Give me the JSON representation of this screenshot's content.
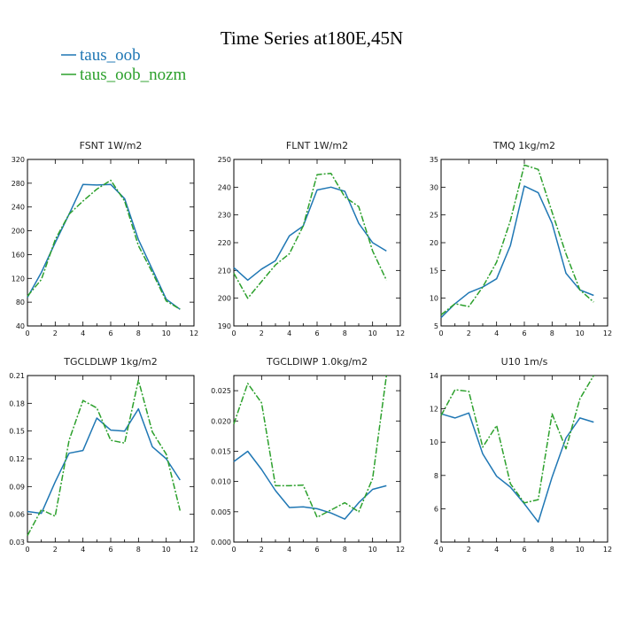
{
  "figure": {
    "title": "Time Series at180E,45N",
    "legend": [
      {
        "label": "taus_oob",
        "color": "#1f77b4",
        "dash": "solid"
      },
      {
        "label": "taus_oob_nozm",
        "color": "#2ca02c",
        "dash": "dashed"
      }
    ]
  },
  "chart_data": [
    {
      "type": "line",
      "title": "FSNT   1W/m2",
      "x": [
        0,
        1,
        2,
        3,
        4,
        5,
        6,
        7,
        8,
        9,
        10,
        11
      ],
      "xlim": [
        0,
        12
      ],
      "xticks": [
        0,
        2,
        4,
        6,
        8,
        10,
        12
      ],
      "ylim": [
        40,
        320
      ],
      "yticks": [
        40,
        80,
        120,
        160,
        200,
        240,
        280,
        320
      ],
      "ytick_labels": [
        "40",
        "80",
        "120",
        "160",
        "200",
        "240",
        "280",
        "320"
      ],
      "series": [
        {
          "name": "taus_oob",
          "values": [
            88,
            130,
            180,
            228,
            278,
            277,
            278,
            254,
            185,
            135,
            85,
            68
          ]
        },
        {
          "name": "taus_oob_nozm",
          "values": [
            90,
            118,
            185,
            228,
            250,
            270,
            285,
            250,
            175,
            130,
            82,
            68
          ]
        }
      ]
    },
    {
      "type": "line",
      "title": "FLNT   1W/m2",
      "x": [
        0,
        1,
        2,
        3,
        4,
        5,
        6,
        7,
        8,
        9,
        10,
        11
      ],
      "xlim": [
        0,
        12
      ],
      "xticks": [
        0,
        2,
        4,
        6,
        8,
        10,
        12
      ],
      "ylim": [
        190,
        250
      ],
      "yticks": [
        190,
        200,
        210,
        220,
        230,
        240,
        250
      ],
      "ytick_labels": [
        "190",
        "200",
        "210",
        "220",
        "230",
        "240",
        "250"
      ],
      "series": [
        {
          "name": "taus_oob",
          "values": [
            211,
            206.5,
            210.5,
            213.5,
            222.5,
            226,
            239,
            240,
            238.5,
            227,
            220,
            217
          ]
        },
        {
          "name": "taus_oob_nozm",
          "values": [
            209,
            200,
            206,
            212,
            216,
            226,
            244.5,
            245,
            236.5,
            233,
            217,
            206.5
          ]
        }
      ]
    },
    {
      "type": "line",
      "title": "TMQ   1kg/m2",
      "x": [
        0,
        1,
        2,
        3,
        4,
        5,
        6,
        7,
        8,
        9,
        10,
        11
      ],
      "xlim": [
        0,
        12
      ],
      "xticks": [
        0,
        2,
        4,
        6,
        8,
        10,
        12
      ],
      "ylim": [
        5,
        35
      ],
      "yticks": [
        5,
        10,
        15,
        20,
        25,
        30,
        35
      ],
      "ytick_labels": [
        "5",
        "10",
        "15",
        "20",
        "25",
        "30",
        "35"
      ],
      "series": [
        {
          "name": "taus_oob",
          "values": [
            6.5,
            9,
            11,
            12,
            13.5,
            19.5,
            30.2,
            29,
            23.5,
            14.5,
            11.5,
            10.5
          ]
        },
        {
          "name": "taus_oob_nozm",
          "values": [
            7,
            9,
            8.5,
            12,
            16.5,
            24,
            34,
            33.2,
            25.5,
            18,
            11.5,
            9.3
          ]
        }
      ]
    },
    {
      "type": "line",
      "title": "TGCLDLWP   1kg/m2",
      "x": [
        0,
        1,
        2,
        3,
        4,
        5,
        6,
        7,
        8,
        9,
        10,
        11
      ],
      "xlim": [
        0,
        12
      ],
      "xticks": [
        0,
        2,
        4,
        6,
        8,
        10,
        12
      ],
      "ylim": [
        0.03,
        0.21
      ],
      "yticks": [
        0.03,
        0.06,
        0.09,
        0.12,
        0.15,
        0.18,
        0.21
      ],
      "ytick_labels": [
        "0.03",
        "0.06",
        "0.09",
        "0.12",
        "0.15",
        "0.18",
        "0.21"
      ],
      "series": [
        {
          "name": "taus_oob",
          "values": [
            0.063,
            0.061,
            0.095,
            0.126,
            0.129,
            0.164,
            0.151,
            0.15,
            0.174,
            0.133,
            0.12,
            0.097
          ]
        },
        {
          "name": "taus_oob_nozm",
          "values": [
            0.037,
            0.065,
            0.058,
            0.14,
            0.183,
            0.175,
            0.14,
            0.137,
            0.205,
            0.149,
            0.125,
            0.064
          ]
        }
      ]
    },
    {
      "type": "line",
      "title": "TGCLDIWP   1.0kg/m2",
      "x": [
        0,
        1,
        2,
        3,
        4,
        5,
        6,
        7,
        8,
        9,
        10,
        11
      ],
      "xlim": [
        0,
        12
      ],
      "xticks": [
        0,
        2,
        4,
        6,
        8,
        10,
        12
      ],
      "ylim": [
        0,
        0.0275
      ],
      "yticks": [
        0,
        0.005,
        0.01,
        0.015,
        0.02,
        0.025
      ],
      "ytick_labels": [
        "0.000",
        "0.005",
        "0.010",
        "0.015",
        "0.020",
        "0.025"
      ],
      "series": [
        {
          "name": "taus_oob",
          "values": [
            0.0133,
            0.015,
            0.012,
            0.0085,
            0.0057,
            0.0058,
            0.0055,
            0.0048,
            0.0038,
            0.0065,
            0.0087,
            0.0093
          ]
        },
        {
          "name": "taus_oob_nozm",
          "values": [
            0.0195,
            0.0262,
            0.023,
            0.0093,
            0.0093,
            0.0094,
            0.0041,
            0.0053,
            0.0065,
            0.005,
            0.0105,
            0.0275
          ]
        }
      ]
    },
    {
      "type": "line",
      "title": "U10   1m/s",
      "x": [
        0,
        1,
        2,
        3,
        4,
        5,
        6,
        7,
        8,
        9,
        10,
        11
      ],
      "xlim": [
        0,
        12
      ],
      "xticks": [
        0,
        2,
        4,
        6,
        8,
        10,
        12
      ],
      "ylim": [
        4,
        14
      ],
      "yticks": [
        4,
        6,
        8,
        10,
        12,
        14
      ],
      "ytick_labels": [
        "4",
        "6",
        "8",
        "10",
        "12",
        "14"
      ],
      "series": [
        {
          "name": "taus_oob",
          "values": [
            11.7,
            11.45,
            11.75,
            9.3,
            7.95,
            7.3,
            6.3,
            5.2,
            7.9,
            10.25,
            11.45,
            11.2
          ]
        },
        {
          "name": "taus_oob_nozm",
          "values": [
            11.6,
            13.15,
            13.05,
            9.7,
            11,
            7.5,
            6.35,
            6.55,
            11.7,
            9.6,
            12.6,
            14
          ]
        }
      ]
    }
  ]
}
